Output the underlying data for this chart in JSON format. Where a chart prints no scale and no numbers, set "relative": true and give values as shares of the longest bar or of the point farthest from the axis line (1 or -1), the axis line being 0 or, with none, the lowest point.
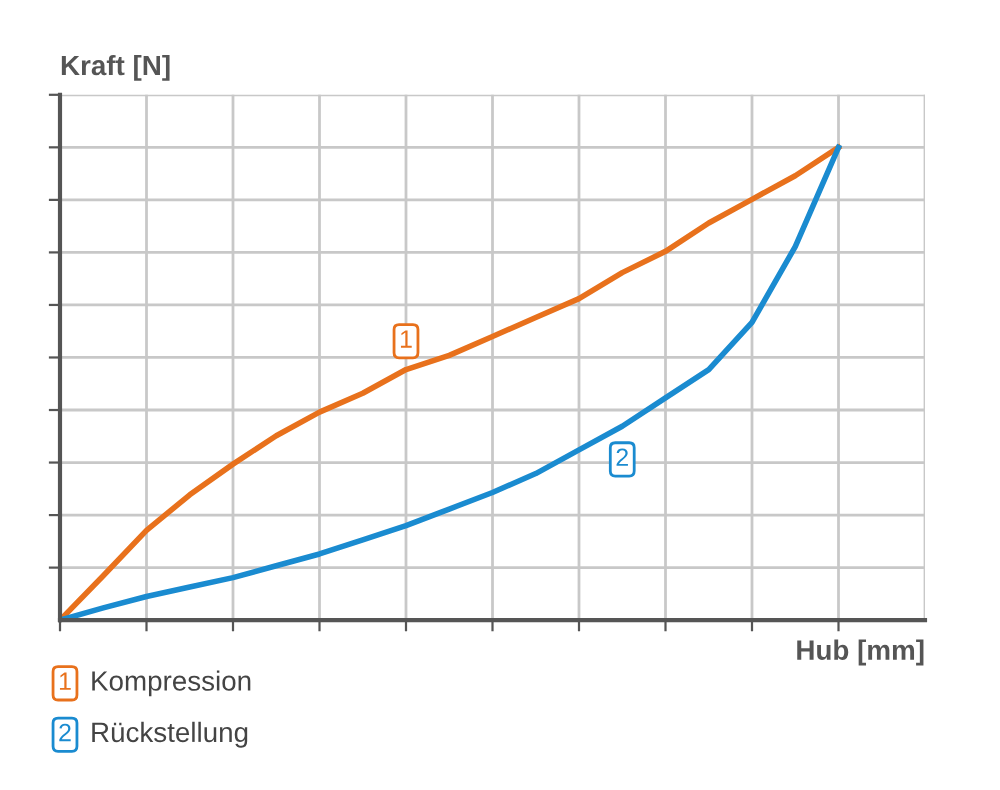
{
  "chart_data": {
    "type": "line",
    "relative": true,
    "xlabel": "Hub [mm]",
    "ylabel": "Kraft [N]",
    "grid": true,
    "legend": "bottom left",
    "marker": "none",
    "line_style": "solid",
    "categories": [
      null,
      null,
      null,
      null,
      null,
      null,
      null,
      null,
      null,
      null,
      null,
      null,
      null,
      null,
      null,
      null,
      null,
      null,
      null
    ],
    "series": [
      {
        "name": "Kompression",
        "color": "#e8711c",
        "values": [
          0,
          0.094,
          0.19,
          0.265,
          0.33,
          0.39,
          0.44,
          0.48,
          0.53,
          0.56,
          0.6,
          0.64,
          0.68,
          0.735,
          0.78,
          0.84,
          0.89,
          0.94,
          1
        ]
      },
      {
        "name": "Rückstellung",
        "color": "#1a8bd0",
        "values": [
          0,
          0.026,
          0.05,
          0.07,
          0.09,
          0.115,
          0.14,
          0.17,
          0.2,
          0.235,
          0.27,
          0.31,
          0.36,
          0.41,
          0.47,
          0.53,
          0.63,
          0.79,
          1
        ]
      }
    ],
    "annotations": [
      "1",
      "2"
    ]
  }
}
